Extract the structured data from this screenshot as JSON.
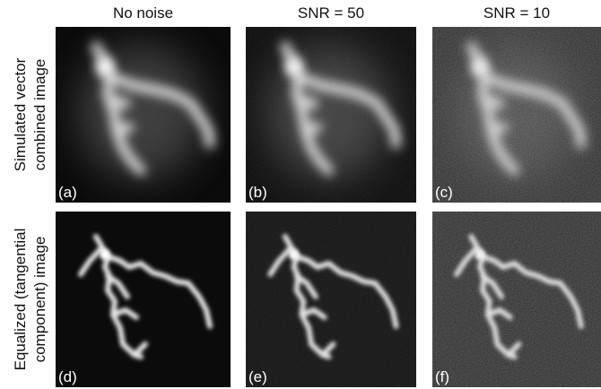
{
  "column_headers": [
    "No noise",
    "SNR = 50",
    "SNR = 10"
  ],
  "row_labels": [
    [
      "Simulated vector",
      "combined image"
    ],
    [
      "Equalized (tangential",
      "component) image"
    ]
  ],
  "panels": [
    [
      "(a)",
      "(b)",
      "(c)"
    ],
    [
      "(d)",
      "(e)",
      "(f)"
    ]
  ]
}
